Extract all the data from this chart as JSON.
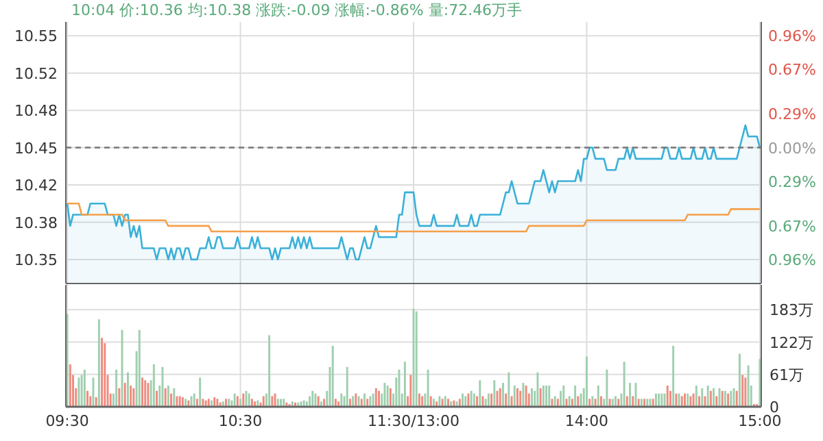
{
  "chart_data": [
    {
      "type": "area",
      "annotations": [
        "10:04 价:10.36 均:10.38 涨跌:-0.09 涨幅:-0.86% 量:72.46万手"
      ],
      "tick_labels": "y",
      "categories": [
        null,
        null,
        null,
        null,
        null,
        null,
        null,
        null,
        null,
        null,
        null,
        null,
        null,
        null,
        null,
        null,
        null,
        null,
        null,
        null,
        null,
        null,
        null,
        null,
        null,
        null,
        null,
        null,
        null,
        null,
        null,
        null,
        null,
        null,
        null,
        null,
        null,
        null,
        null,
        null,
        null,
        null,
        null,
        null,
        null,
        null,
        null,
        null,
        null,
        null,
        null,
        null,
        null,
        null,
        null,
        null,
        null,
        null,
        null,
        null,
        null,
        null,
        null,
        null,
        null,
        null,
        null,
        null,
        null,
        null,
        null,
        null,
        null,
        null,
        null,
        null,
        null,
        null,
        null,
        null,
        null,
        null,
        null,
        null,
        null,
        null,
        null,
        null,
        null,
        null,
        null,
        null,
        null,
        null,
        null,
        null,
        null,
        null,
        null,
        null,
        null,
        null,
        null,
        null,
        null,
        null,
        null,
        null,
        null,
        null,
        null,
        null,
        null,
        null,
        null,
        null,
        null,
        null,
        null,
        null,
        null,
        null,
        null,
        null,
        null,
        null,
        null,
        null,
        null,
        null,
        null,
        null,
        null,
        null,
        null,
        null,
        null,
        null,
        null,
        null,
        null,
        null,
        null,
        null,
        null,
        null,
        null,
        null,
        null,
        null,
        null,
        null,
        null,
        null,
        null,
        null,
        null,
        null,
        null,
        null,
        null,
        null,
        null,
        null,
        null,
        null,
        null,
        null,
        null,
        null,
        null,
        null,
        null,
        null,
        null,
        null,
        null,
        null,
        null,
        null,
        null,
        null,
        null,
        null,
        null,
        null,
        null,
        null,
        null,
        null,
        null,
        null,
        null,
        null,
        null,
        null,
        null,
        null,
        null,
        null,
        null,
        null,
        null,
        null,
        null,
        null,
        null,
        null,
        null,
        null,
        null,
        null,
        null,
        null,
        null,
        null,
        null,
        null,
        null,
        null,
        null,
        null,
        null,
        null,
        null,
        null,
        null,
        null,
        null,
        null,
        null,
        null,
        null,
        null,
        null,
        null,
        null,
        null,
        null,
        null,
        null
      ],
      "ylim": [
        10.3285,
        10.5624
      ],
      "yticks": [
        {
          "value": 10.35,
          "label": "10.35"
        },
        {
          "value": 10.3833,
          "label": "10.38"
        },
        {
          "value": 10.4167,
          "label": "10.42"
        },
        {
          "value": 10.45,
          "label": "10.45"
        },
        {
          "value": 10.4833,
          "label": "10.48"
        },
        {
          "value": 10.5167,
          "label": "10.52"
        },
        {
          "value": 10.55,
          "label": "10.55"
        }
      ],
      "y2lim": [
        -1.163,
        1.076
      ],
      "y2ticks": [
        {
          "value": -0.96,
          "label": "0.96%"
        },
        {
          "value": -0.67,
          "label": "0.67%"
        },
        {
          "value": -0.29,
          "label": "0.29%"
        },
        {
          "value": 0,
          "label": "0.00%"
        },
        {
          "value": 0.29,
          "label": "0.29%"
        },
        {
          "value": 0.67,
          "label": "0.67%"
        },
        {
          "value": 0.96,
          "label": "0.96%"
        }
      ],
      "grid": "y",
      "ref_lines": [
        {
          "axis": "y",
          "value": 10.45,
          "color": "#777777",
          "line_style": "dashed"
        }
      ],
      "series": [
        {
          "type": "area",
          "color": "#3ab0d8",
          "values": [
            10.4,
            10.38,
            10.39,
            10.39,
            10.39,
            10.39,
            10.39,
            10.39,
            10.4,
            10.4,
            10.4,
            10.4,
            10.4,
            10.4,
            10.39,
            10.39,
            10.39,
            10.38,
            10.39,
            10.38,
            10.39,
            10.39,
            10.37,
            10.38,
            10.37,
            10.38,
            10.36,
            10.36,
            10.36,
            10.36,
            10.36,
            10.35,
            10.36,
            10.36,
            10.36,
            10.35,
            10.36,
            10.35,
            10.36,
            10.36,
            10.35,
            10.36,
            10.36,
            10.35,
            10.35,
            10.35,
            10.36,
            10.36,
            10.36,
            10.37,
            10.36,
            10.36,
            10.37,
            10.37,
            10.36,
            10.36,
            10.36,
            10.36,
            10.36,
            10.37,
            10.36,
            10.36,
            10.36,
            10.36,
            10.37,
            10.36,
            10.37,
            10.36,
            10.36,
            10.36,
            10.36,
            10.35,
            10.36,
            10.35,
            10.36,
            10.36,
            10.36,
            10.36,
            10.37,
            10.36,
            10.37,
            10.36,
            10.37,
            10.36,
            10.37,
            10.36,
            10.36,
            10.36,
            10.36,
            10.36,
            10.36,
            10.36,
            10.36,
            10.36,
            10.36,
            10.37,
            10.36,
            10.35,
            10.36,
            10.36,
            10.35,
            10.35,
            10.36,
            10.37,
            10.36,
            10.36,
            10.37,
            10.38,
            10.37,
            10.37,
            10.37,
            10.37,
            10.37,
            10.37,
            10.37,
            10.39,
            10.39,
            10.41,
            10.41,
            10.41,
            10.41,
            10.39,
            10.38,
            10.38,
            10.38,
            10.38,
            10.38,
            10.39,
            10.38,
            10.38,
            10.38,
            10.38,
            10.38,
            10.38,
            10.38,
            10.39,
            10.38,
            10.38,
            10.38,
            10.38,
            10.39,
            10.38,
            10.38,
            10.39,
            10.39,
            10.39,
            10.39,
            10.39,
            10.39,
            10.39,
            10.39,
            10.4,
            10.41,
            10.41,
            10.42,
            10.41,
            10.4,
            10.4,
            10.4,
            10.4,
            10.4,
            10.41,
            10.42,
            10.42,
            10.42,
            10.43,
            10.42,
            10.41,
            10.42,
            10.41,
            10.42,
            10.42,
            10.42,
            10.42,
            10.42,
            10.42,
            10.42,
            10.43,
            10.42,
            10.44,
            10.44,
            10.45,
            10.45,
            10.44,
            10.44,
            10.44,
            10.44,
            10.43,
            10.43,
            10.43,
            10.43,
            10.44,
            10.44,
            10.44,
            10.45,
            10.44,
            10.45,
            10.44,
            10.44,
            10.44,
            10.44,
            10.44,
            10.44,
            10.44,
            10.44,
            10.44,
            10.44,
            10.45,
            10.45,
            10.44,
            10.44,
            10.44,
            10.45,
            10.44,
            10.44,
            10.44,
            10.44,
            10.45,
            10.44,
            10.44,
            10.44,
            10.45,
            10.44,
            10.44,
            10.45,
            10.44,
            10.44,
            10.44,
            10.44,
            10.44,
            10.44,
            10.44,
            10.44,
            10.45,
            10.46,
            10.47,
            10.46,
            10.46,
            10.46,
            10.46,
            10.45
          ]
        },
        {
          "type": "line",
          "color": "#f5a04a",
          "values": [
            10.4,
            10.4,
            10.4,
            10.4,
            10.4,
            10.39,
            10.39,
            10.39,
            10.39,
            10.39,
            10.39,
            10.39,
            10.39,
            10.39,
            10.39,
            10.39,
            10.39,
            10.39,
            10.39,
            10.39,
            10.385,
            10.385,
            10.385,
            10.385,
            10.385,
            10.385,
            10.385,
            10.385,
            10.385,
            10.385,
            10.385,
            10.385,
            10.385,
            10.385,
            10.385,
            10.38,
            10.38,
            10.38,
            10.38,
            10.38,
            10.38,
            10.38,
            10.38,
            10.38,
            10.38,
            10.38,
            10.38,
            10.38,
            10.38,
            10.38,
            10.375,
            10.375,
            10.375,
            10.375,
            10.375,
            10.375,
            10.375,
            10.375,
            10.375,
            10.375,
            10.375,
            10.375,
            10.375,
            10.375,
            10.375,
            10.375,
            10.375,
            10.375,
            10.375,
            10.375,
            10.375,
            10.375,
            10.375,
            10.375,
            10.375,
            10.375,
            10.375,
            10.375,
            10.375,
            10.375,
            10.375,
            10.375,
            10.375,
            10.375,
            10.375,
            10.375,
            10.375,
            10.375,
            10.375,
            10.375,
            10.375,
            10.375,
            10.375,
            10.375,
            10.375,
            10.375,
            10.375,
            10.375,
            10.375,
            10.375,
            10.375,
            10.375,
            10.375,
            10.375,
            10.375,
            10.375,
            10.375,
            10.375,
            10.375,
            10.375,
            10.375,
            10.375,
            10.375,
            10.375,
            10.375,
            10.375,
            10.375,
            10.375,
            10.375,
            10.375,
            10.375,
            10.375,
            10.375,
            10.375,
            10.375,
            10.375,
            10.375,
            10.375,
            10.375,
            10.375,
            10.375,
            10.375,
            10.375,
            10.375,
            10.375,
            10.375,
            10.375,
            10.375,
            10.375,
            10.375,
            10.375,
            10.375,
            10.375,
            10.375,
            10.375,
            10.375,
            10.375,
            10.375,
            10.375,
            10.375,
            10.375,
            10.375,
            10.375,
            10.375,
            10.375,
            10.375,
            10.375,
            10.375,
            10.375,
            10.375,
            10.38,
            10.38,
            10.38,
            10.38,
            10.38,
            10.38,
            10.38,
            10.38,
            10.38,
            10.38,
            10.38,
            10.38,
            10.38,
            10.38,
            10.38,
            10.38,
            10.38,
            10.38,
            10.38,
            10.38,
            10.385,
            10.385,
            10.385,
            10.385,
            10.385,
            10.385,
            10.385,
            10.385,
            10.385,
            10.385,
            10.385,
            10.385,
            10.385,
            10.385,
            10.385,
            10.385,
            10.385,
            10.385,
            10.385,
            10.385,
            10.385,
            10.385,
            10.385,
            10.385,
            10.385,
            10.385,
            10.385,
            10.385,
            10.385,
            10.385,
            10.385,
            10.385,
            10.385,
            10.385,
            10.385,
            10.39,
            10.39,
            10.39,
            10.39,
            10.39,
            10.39,
            10.39,
            10.39,
            10.39,
            10.39,
            10.39,
            10.39,
            10.39,
            10.39,
            10.39,
            10.395,
            10.395,
            10.395,
            10.395,
            10.395,
            10.395,
            10.395,
            10.395,
            10.395,
            10.395,
            10.395
          ]
        }
      ]
    },
    {
      "type": "bar",
      "categories": [
        "09:30",
        null,
        null,
        null,
        null,
        null,
        null,
        null,
        null,
        null,
        null,
        null,
        null,
        null,
        null,
        null,
        null,
        null,
        null,
        null,
        null,
        null,
        null,
        null,
        null,
        null,
        null,
        null,
        null,
        null,
        null,
        null,
        null,
        null,
        null,
        null,
        null,
        null,
        null,
        null,
        null,
        null,
        null,
        null,
        null,
        null,
        null,
        null,
        null,
        null,
        null,
        null,
        null,
        null,
        null,
        null,
        null,
        null,
        null,
        null,
        "10:30",
        null,
        null,
        null,
        null,
        null,
        null,
        null,
        null,
        null,
        null,
        null,
        null,
        null,
        null,
        null,
        null,
        null,
        null,
        null,
        null,
        null,
        null,
        null,
        null,
        null,
        null,
        null,
        null,
        null,
        null,
        null,
        null,
        null,
        null,
        null,
        null,
        null,
        null,
        null,
        null,
        null,
        null,
        null,
        null,
        null,
        null,
        null,
        null,
        null,
        null,
        null,
        null,
        null,
        null,
        null,
        null,
        null,
        null,
        null,
        "11:30/13:00",
        null,
        null,
        null,
        null,
        null,
        null,
        null,
        null,
        null,
        null,
        null,
        null,
        null,
        null,
        null,
        null,
        null,
        null,
        null,
        null,
        null,
        null,
        null,
        null,
        null,
        null,
        null,
        null,
        null,
        null,
        null,
        null,
        null,
        null,
        null,
        null,
        null,
        null,
        null,
        null,
        null,
        null,
        null,
        null,
        null,
        null,
        null,
        null,
        null,
        null,
        null,
        null,
        null,
        null,
        null,
        null,
        null,
        null,
        null,
        "14:00",
        null,
        null,
        null,
        null,
        null,
        null,
        null,
        null,
        null,
        null,
        null,
        null,
        null,
        null,
        null,
        null,
        null,
        null,
        null,
        null,
        null,
        null,
        null,
        null,
        null,
        null,
        null,
        null,
        null,
        null,
        null,
        null,
        null,
        null,
        null,
        null,
        null,
        null,
        null,
        null,
        null,
        null,
        null,
        null,
        null,
        null,
        null,
        null,
        null,
        null,
        null,
        null,
        null,
        null,
        null,
        null,
        null,
        null,
        null,
        "15:00"
      ],
      "ylim": [
        0,
        230
      ],
      "yticks": [
        {
          "value": 0,
          "label": "0"
        },
        {
          "value": 61,
          "label": "61万"
        },
        {
          "value": 122,
          "label": "122万"
        },
        {
          "value": 183,
          "label": "183万"
        }
      ],
      "grid": true,
      "values": [
        175,
        80,
        60,
        35,
        55,
        60,
        70,
        30,
        20,
        55,
        18,
        165,
        130,
        120,
        60,
        25,
        25,
        70,
        35,
        145,
        45,
        65,
        40,
        35,
        105,
        145,
        55,
        50,
        45,
        50,
        80,
        30,
        40,
        75,
        35,
        40,
        25,
        35,
        20,
        20,
        18,
        15,
        12,
        20,
        25,
        15,
        55,
        15,
        12,
        15,
        12,
        18,
        15,
        8,
        10,
        15,
        15,
        12,
        25,
        20,
        15,
        25,
        30,
        25,
        15,
        10,
        12,
        8,
        20,
        25,
        135,
        20,
        25,
        15,
        15,
        15,
        8,
        5,
        10,
        8,
        8,
        10,
        12,
        10,
        20,
        30,
        25,
        20,
        10,
        15,
        30,
        75,
        115,
        15,
        10,
        25,
        20,
        75,
        15,
        20,
        25,
        20,
        15,
        25,
        15,
        20,
        25,
        35,
        30,
        25,
        45,
        40,
        35,
        25,
        55,
        70,
        25,
        85,
        20,
        60,
        185,
        180,
        25,
        20,
        25,
        70,
        20,
        15,
        10,
        20,
        15,
        20,
        15,
        10,
        12,
        10,
        15,
        25,
        20,
        25,
        30,
        25,
        20,
        50,
        20,
        15,
        25,
        25,
        50,
        30,
        35,
        45,
        25,
        65,
        20,
        40,
        35,
        30,
        45,
        40,
        25,
        35,
        30,
        65,
        35,
        40,
        40,
        40,
        15,
        20,
        15,
        30,
        40,
        15,
        20,
        15,
        40,
        20,
        25,
        35,
        95,
        15,
        20,
        15,
        40,
        20,
        15,
        70,
        15,
        15,
        20,
        15,
        25,
        85,
        20,
        45,
        20,
        45,
        15,
        15,
        15,
        15,
        15,
        15,
        25,
        25,
        25,
        25,
        40,
        30,
        115,
        25,
        25,
        20,
        25,
        25,
        20,
        25,
        40,
        20,
        35,
        20,
        40,
        30,
        35,
        20,
        35,
        30,
        30,
        25,
        30,
        35,
        30,
        100,
        60,
        55,
        78,
        40,
        5,
        5,
        90
      ],
      "colors": [
        "#9fcfae",
        "#f08a7e",
        "#f08a7e",
        "#f08a7e",
        "#9fcfae",
        "#9fcfae",
        "#9fcfae",
        "#f08a7e",
        "#f08a7e",
        "#9fcfae",
        "#f08a7e",
        "#9fcfae",
        "#f08a7e",
        "#f08a7e",
        "#f08a7e",
        "#f08a7e",
        "#9fcfae",
        "#9fcfae",
        "#f08a7e",
        "#9fcfae",
        "#f08a7e",
        "#9fcfae",
        "#f08a7e",
        "#f08a7e",
        "#9fcfae",
        "#9fcfae",
        "#f08a7e",
        "#f08a7e",
        "#f08a7e",
        "#9fcfae",
        "#9fcfae",
        "#f08a7e",
        "#9fcfae",
        "#9fcfae",
        "#f08a7e",
        "#9fcfae",
        "#f08a7e",
        "#9fcfae",
        "#f08a7e",
        "#f08a7e",
        "#f08a7e",
        "#9fcfae",
        "#f08a7e",
        "#9fcfae",
        "#9fcfae",
        "#f08a7e",
        "#9fcfae",
        "#f08a7e",
        "#f08a7e",
        "#f08a7e",
        "#9fcfae",
        "#f08a7e",
        "#f08a7e",
        "#f08a7e",
        "#9fcfae",
        "#f08a7e",
        "#9fcfae",
        "#9fcfae",
        "#9fcfae",
        "#f08a7e",
        "#9fcfae",
        "#f08a7e",
        "#9fcfae",
        "#9fcfae",
        "#f08a7e",
        "#f08a7e",
        "#9fcfae",
        "#f08a7e",
        "#f08a7e",
        "#9fcfae",
        "#9fcfae",
        "#f08a7e",
        "#f08a7e",
        "#9fcfae",
        "#9fcfae",
        "#9fcfae",
        "#f08a7e",
        "#f08a7e",
        "#9fcfae",
        "#f08a7e",
        "#9fcfae",
        "#9fcfae",
        "#9fcfae",
        "#9fcfae",
        "#9fcfae",
        "#9fcfae",
        "#9fcfae",
        "#f08a7e",
        "#9fcfae",
        "#f08a7e",
        "#9fcfae",
        "#9fcfae",
        "#9fcfae",
        "#f08a7e",
        "#f08a7e",
        "#9fcfae",
        "#9fcfae",
        "#9fcfae",
        "#f08a7e",
        "#9fcfae",
        "#f08a7e",
        "#9fcfae",
        "#f08a7e",
        "#9fcfae",
        "#f08a7e",
        "#9fcfae",
        "#9fcfae",
        "#f08a7e",
        "#f08a7e",
        "#9fcfae",
        "#9fcfae",
        "#9fcfae",
        "#f08a7e",
        "#9fcfae",
        "#9fcfae",
        "#9fcfae",
        "#9fcfae",
        "#9fcfae",
        "#f08a7e",
        "#f08a7e",
        "#9fcfae",
        "#9fcfae",
        "#f08a7e",
        "#f08a7e",
        "#9fcfae",
        "#9fcfae",
        "#f08a7e",
        "#9fcfae",
        "#f08a7e",
        "#9fcfae",
        "#f08a7e",
        "#9fcfae",
        "#f08a7e",
        "#9fcfae",
        "#f08a7e",
        "#9fcfae",
        "#f08a7e",
        "#9fcfae",
        "#9fcfae",
        "#f08a7e",
        "#9fcfae",
        "#9fcfae",
        "#f08a7e",
        "#9fcfae",
        "#f08a7e",
        "#9fcfae",
        "#9fcfae",
        "#f08a7e",
        "#9fcfae",
        "#f08a7e",
        "#f08a7e",
        "#9fcfae",
        "#f08a7e",
        "#9fcfae",
        "#f08a7e",
        "#9fcfae",
        "#f08a7e",
        "#f08a7e",
        "#9fcfae",
        "#f08a7e",
        "#f08a7e",
        "#9fcfae",
        "#9fcfae",
        "#9fcfae",
        "#f08a7e",
        "#9fcfae",
        "#9fcfae",
        "#9fcfae",
        "#f08a7e",
        "#9fcfae",
        "#f08a7e",
        "#9fcfae",
        "#9fcfae",
        "#f08a7e",
        "#9fcfae",
        "#f08a7e",
        "#9fcfae",
        "#f08a7e",
        "#9fcfae",
        "#9fcfae",
        "#9fcfae",
        "#f08a7e",
        "#9fcfae",
        "#f08a7e",
        "#9fcfae",
        "#f08a7e",
        "#9fcfae",
        "#9fcfae",
        "#f08a7e",
        "#9fcfae",
        "#9fcfae",
        "#f08a7e",
        "#9fcfae",
        "#9fcfae",
        "#f08a7e",
        "#9fcfae",
        "#f08a7e",
        "#9fcfae",
        "#f08a7e",
        "#9fcfae",
        "#f08a7e",
        "#9fcfae",
        "#9fcfae",
        "#f08a7e",
        "#9fcfae",
        "#9fcfae",
        "#9fcfae",
        "#9fcfae",
        "#f08a7e",
        "#f08a7e",
        "#9fcfae",
        "#f08a7e",
        "#9fcfae",
        "#f08a7e",
        "#f08a7e",
        "#9fcfae",
        "#f08a7e",
        "#f08a7e",
        "#9fcfae",
        "#f08a7e",
        "#9fcfae",
        "#f08a7e",
        "#9fcfae",
        "#f08a7e",
        "#9fcfae",
        "#f08a7e",
        "#9fcfae",
        "#f08a7e",
        "#9fcfae",
        "#f08a7e",
        "#9fcfae",
        "#9fcfae",
        "#f08a7e",
        "#9fcfae",
        "#f08a7e",
        "#f08a7e",
        "#9fcfae",
        "#9fcfae",
        "#f08a7e",
        "#f08a7e",
        "#9fcfae"
      ]
    }
  ]
}
